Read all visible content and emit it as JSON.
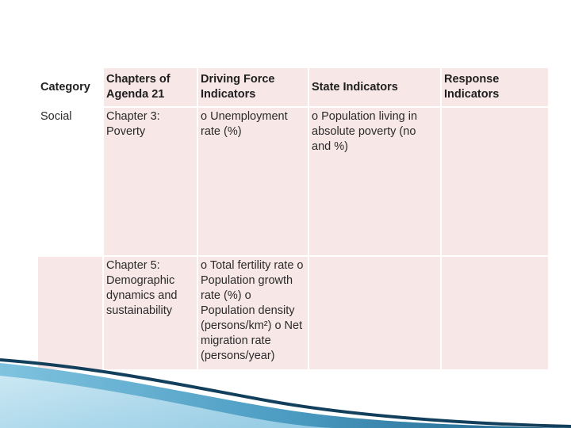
{
  "table": {
    "headers": {
      "category": "Category",
      "chapters": "Chapters of Agenda 21",
      "driving_force": "Driving Force Indicators",
      "state": "State Indicators",
      "response": "Response Indicators"
    },
    "rows": [
      {
        "category": "Social",
        "chapter": "Chapter 3: Poverty",
        "driving_force": "o Unemployment rate (%)",
        "state": "o Population living in absolute poverty (no and %)",
        "response": ""
      },
      {
        "category": "",
        "chapter": "Chapter 5: Demographic dynamics and sustainability",
        "driving_force": "o Total fertility rate o Population growth rate (%) o Population density (persons/km²) o Net migration rate (persons/year)",
        "state": "",
        "response": ""
      }
    ]
  },
  "colors": {
    "cell_background": "#f7e7e7",
    "wave_dark": "#1b5f86",
    "wave_light": "#7fc3df"
  }
}
